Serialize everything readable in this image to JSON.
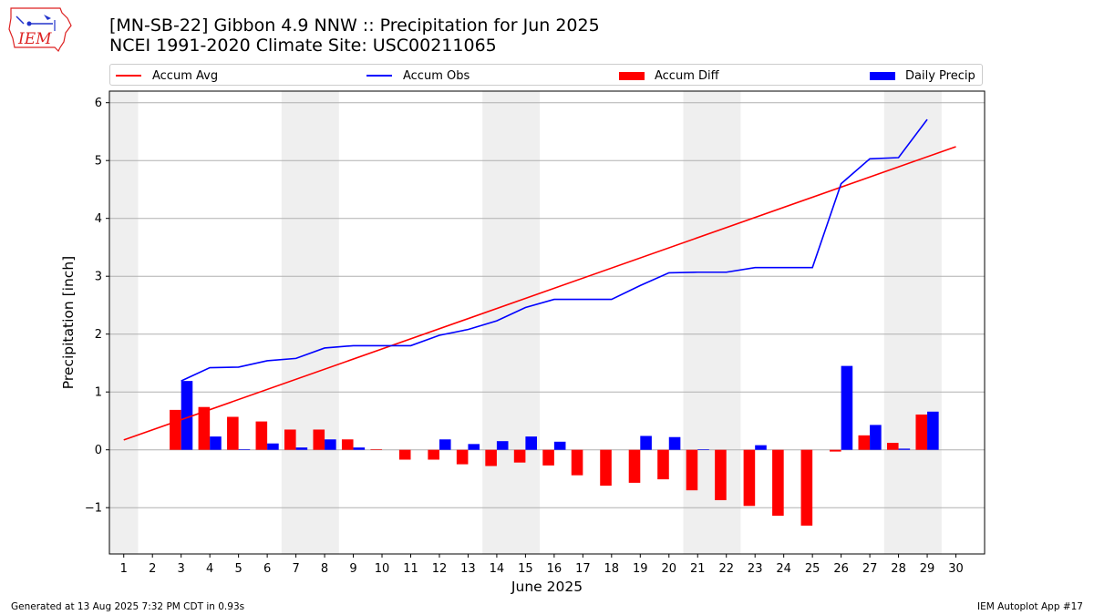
{
  "logo_text": "IEM",
  "title_line1": "[MN-SB-22] Gibbon 4.9 NNW :: Precipitation for Jun 2025",
  "title_line2": "NCEI 1991-2020 Climate Site: USC00211065",
  "footer_left": "Generated at 13 Aug 2025 7:32 PM CDT in 0.93s",
  "footer_right": "IEM Autoplot App #17",
  "colors": {
    "avg": "#ff0000",
    "obs": "#0000ff",
    "diff": "#ff0000",
    "daily": "#0000ff",
    "weekend_shade": "#efefef",
    "grid": "#b0b0b0"
  },
  "legend": {
    "accum_avg": "Accum Avg",
    "accum_obs": "Accum Obs",
    "accum_diff": "Accum Diff",
    "daily_precip": "Daily Precip"
  },
  "chart_data": {
    "type": "bar",
    "xlabel": "June 2025",
    "ylabel": "Precipitation [inch]",
    "ylim": [
      -1.8,
      6.2
    ],
    "xlim": [
      0.5,
      31.0
    ],
    "grid": "horizontal",
    "legend_placement": "top",
    "x_ticks": [
      1,
      2,
      3,
      4,
      5,
      6,
      7,
      8,
      9,
      10,
      11,
      12,
      13,
      14,
      15,
      16,
      17,
      18,
      19,
      20,
      21,
      22,
      23,
      24,
      25,
      26,
      27,
      28,
      29,
      30
    ],
    "y_ticks": [
      {
        "v": -1,
        "label": "−1"
      },
      {
        "v": 0,
        "label": "0"
      },
      {
        "v": 1,
        "label": "1"
      },
      {
        "v": 2,
        "label": "2"
      },
      {
        "v": 3,
        "label": "3"
      },
      {
        "v": 4,
        "label": "4"
      },
      {
        "v": 5,
        "label": "5"
      },
      {
        "v": 6,
        "label": "6"
      }
    ],
    "weekend_ranges": [
      [
        0.5,
        1.5
      ],
      [
        6.5,
        8.5
      ],
      [
        13.5,
        15.5
      ],
      [
        20.5,
        22.5
      ],
      [
        27.5,
        29.5
      ]
    ],
    "accum_avg": {
      "x": [
        1,
        30
      ],
      "y": [
        0.17,
        5.24
      ]
    },
    "accum_obs": {
      "x": [
        3,
        4,
        5,
        6,
        7,
        8,
        9,
        10,
        11,
        12,
        13,
        14,
        15,
        16,
        17,
        18,
        19,
        20,
        21,
        22,
        23,
        24,
        25,
        26,
        27,
        28,
        29
      ],
      "y": [
        1.19,
        1.42,
        1.43,
        1.54,
        1.58,
        1.76,
        1.8,
        1.8,
        1.8,
        1.98,
        2.08,
        2.23,
        2.46,
        2.6,
        2.6,
        2.6,
        2.84,
        3.06,
        3.07,
        3.07,
        3.15,
        3.15,
        3.15,
        4.6,
        5.03,
        5.05,
        5.71
      ]
    },
    "accum_diff": {
      "x": [
        3,
        4,
        5,
        6,
        7,
        8,
        9,
        10,
        11,
        12,
        13,
        14,
        15,
        16,
        17,
        18,
        19,
        20,
        21,
        22,
        23,
        24,
        25,
        26,
        27,
        28,
        29
      ],
      "y": [
        0.69,
        0.74,
        0.57,
        0.49,
        0.35,
        0.35,
        0.18,
        0.01,
        -0.17,
        -0.17,
        -0.25,
        -0.28,
        -0.22,
        -0.27,
        -0.44,
        -0.62,
        -0.57,
        -0.51,
        -0.7,
        -0.87,
        -0.97,
        -1.14,
        -1.31,
        -0.03,
        0.25,
        0.12,
        0.61
      ]
    },
    "daily_precip": {
      "x": [
        3,
        4,
        5,
        6,
        7,
        8,
        9,
        10,
        11,
        12,
        13,
        14,
        15,
        16,
        17,
        18,
        19,
        20,
        21,
        22,
        23,
        24,
        25,
        26,
        27,
        28,
        29
      ],
      "y": [
        1.19,
        0.23,
        0.01,
        0.11,
        0.04,
        0.18,
        0.04,
        0.0,
        0.0,
        0.18,
        0.1,
        0.15,
        0.23,
        0.14,
        0.0,
        0.0,
        0.24,
        0.22,
        0.01,
        0.0,
        0.08,
        0.0,
        0.0,
        1.45,
        0.43,
        0.02,
        0.66
      ]
    }
  }
}
